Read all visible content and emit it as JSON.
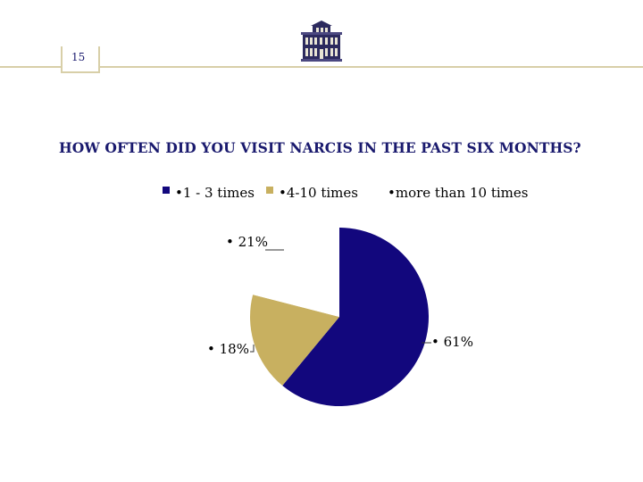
{
  "page": {
    "number": "15"
  },
  "colors": {
    "accent": "#d8cfa8",
    "navy": "#12077d",
    "tan": "#c8b060"
  },
  "chart_data": {
    "type": "pie",
    "title": "HOW OFTEN DID YOU VISIT NARCIS IN THE PAST SIX MONTHS?",
    "legend_position": "top",
    "slices": [
      {
        "label": "1 - 3 times",
        "value": 61,
        "display": "61%",
        "color": "#12077d"
      },
      {
        "label": "4-10 times",
        "value": 18,
        "display": "18%",
        "color": "#c8b060"
      },
      {
        "label": "more than 10 times",
        "value": 21,
        "display": "21%",
        "color": "#ffffff"
      }
    ]
  }
}
